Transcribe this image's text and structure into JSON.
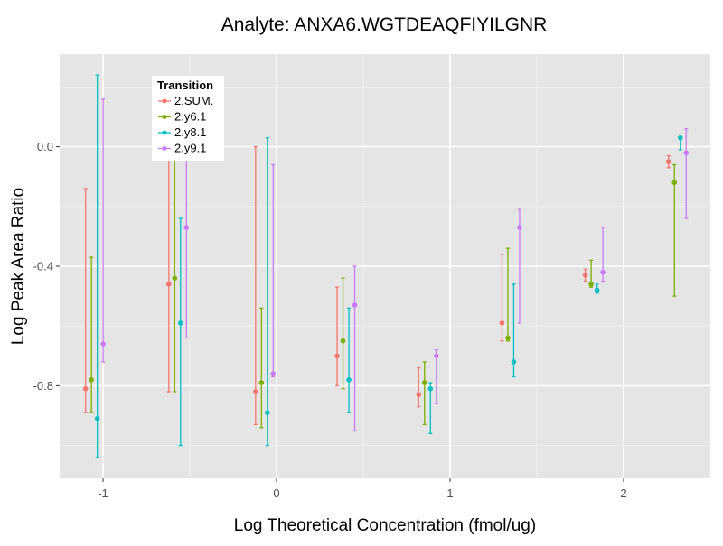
{
  "chart_data": {
    "type": "scatter",
    "title": "Analyte: ANXA6.WGTDEAQFIYILGNR",
    "xlabel": "Log Theoretical Concentration (fmol/ug)",
    "ylabel": "Log Peak Area Ratio",
    "xlim": [
      -1.25,
      2.5
    ],
    "ylim": [
      -1.11,
      0.31
    ],
    "x_ticks": [
      -1,
      0,
      1,
      2
    ],
    "x_tick_labels": [
      "-1",
      "0",
      "1",
      "2"
    ],
    "y_ticks": [
      -0.8,
      -0.4,
      0.0
    ],
    "y_tick_labels": [
      "-0.8",
      "-0.4",
      "0.0"
    ],
    "grid": true,
    "legend": {
      "title": "Transition",
      "position": "top-left"
    },
    "categories_x": [
      -1.05,
      -0.57,
      -0.07,
      0.4,
      0.87,
      1.35,
      1.83,
      2.31
    ],
    "series": [
      {
        "name": "2.SUM.",
        "color": "#F8766D",
        "points": [
          {
            "x": -1.05,
            "y": -0.81,
            "ymin": -0.89,
            "ymax": -0.14
          },
          {
            "x": -0.57,
            "y": -0.46,
            "ymin": -0.82,
            "ymax": 0.03
          },
          {
            "x": -0.07,
            "y": -0.82,
            "ymin": -0.93,
            "ymax": 0.0
          },
          {
            "x": 0.4,
            "y": -0.7,
            "ymin": -0.8,
            "ymax": -0.47
          },
          {
            "x": 0.87,
            "y": -0.83,
            "ymin": -0.87,
            "ymax": -0.74
          },
          {
            "x": 1.35,
            "y": -0.59,
            "ymin": -0.65,
            "ymax": -0.36
          },
          {
            "x": 1.83,
            "y": -0.43,
            "ymin": -0.45,
            "ymax": -0.41
          },
          {
            "x": 2.31,
            "y": -0.05,
            "ymin": -0.07,
            "ymax": -0.03
          }
        ]
      },
      {
        "name": "2.y6.1",
        "color": "#7CAE00",
        "points": [
          {
            "x": -1.05,
            "y": -0.78,
            "ymin": -0.89,
            "ymax": -0.37
          },
          {
            "x": -0.57,
            "y": -0.44,
            "ymin": -0.82,
            "ymax": 0.03
          },
          {
            "x": -0.07,
            "y": -0.79,
            "ymin": -0.94,
            "ymax": -0.54
          },
          {
            "x": 0.4,
            "y": -0.65,
            "ymin": -0.81,
            "ymax": -0.44
          },
          {
            "x": 0.87,
            "y": -0.79,
            "ymin": -0.93,
            "ymax": -0.72
          },
          {
            "x": 1.35,
            "y": -0.64,
            "ymin": -0.65,
            "ymax": -0.34
          },
          {
            "x": 1.83,
            "y": -0.46,
            "ymin": -0.47,
            "ymax": -0.38
          },
          {
            "x": 2.31,
            "y": -0.12,
            "ymin": -0.5,
            "ymax": -0.06
          }
        ]
      },
      {
        "name": "2.y8.1",
        "color": "#00BFC4",
        "points": [
          {
            "x": -1.05,
            "y": -0.91,
            "ymin": -1.04,
            "ymax": 0.24
          },
          {
            "x": -0.57,
            "y": -0.59,
            "ymin": -1.0,
            "ymax": -0.24
          },
          {
            "x": -0.07,
            "y": -0.89,
            "ymin": -1.0,
            "ymax": 0.03
          },
          {
            "x": 0.4,
            "y": -0.78,
            "ymin": -0.89,
            "ymax": -0.54
          },
          {
            "x": 0.87,
            "y": -0.81,
            "ymin": -0.96,
            "ymax": -0.79
          },
          {
            "x": 1.35,
            "y": -0.72,
            "ymin": -0.77,
            "ymax": -0.46
          },
          {
            "x": 1.83,
            "y": -0.48,
            "ymin": -0.49,
            "ymax": -0.46
          },
          {
            "x": 2.31,
            "y": 0.03,
            "ymin": -0.01,
            "ymax": 0.03
          }
        ]
      },
      {
        "name": "2.y9.1",
        "color": "#C77CFF",
        "points": [
          {
            "x": -1.05,
            "y": -0.66,
            "ymin": -0.72,
            "ymax": 0.16
          },
          {
            "x": -0.57,
            "y": -0.27,
            "ymin": -0.64,
            "ymax": 0.02
          },
          {
            "x": -0.07,
            "y": -0.76,
            "ymin": -0.77,
            "ymax": -0.06
          },
          {
            "x": 0.4,
            "y": -0.53,
            "ymin": -0.95,
            "ymax": -0.4
          },
          {
            "x": 0.87,
            "y": -0.7,
            "ymin": -0.86,
            "ymax": -0.68
          },
          {
            "x": 1.35,
            "y": -0.27,
            "ymin": -0.59,
            "ymax": -0.21
          },
          {
            "x": 1.83,
            "y": -0.42,
            "ymin": -0.45,
            "ymax": -0.27
          },
          {
            "x": 2.31,
            "y": -0.02,
            "ymin": -0.24,
            "ymax": 0.06
          }
        ]
      }
    ]
  }
}
